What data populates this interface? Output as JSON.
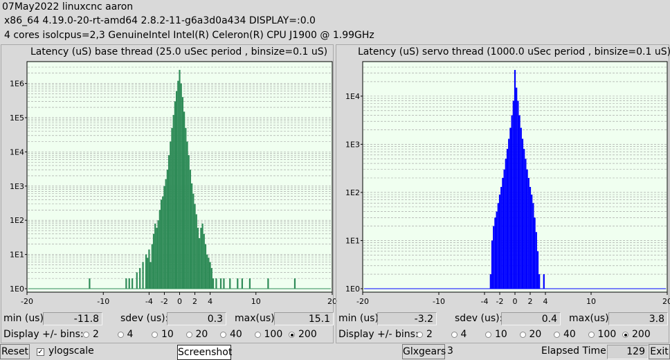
{
  "header": {
    "line1": "07May2022 linuxcnc aaron",
    "line2": "x86_64  4.19.0-20-rt-amd64  2.8.2-11-g6a3d0a434  DISPLAY=:0.0",
    "line3": "4 cores  isolcpus=2,3   GenuineIntel  Intel(R) Celeron(R) CPU J1900 @ 1.99GHz"
  },
  "base": {
    "title": "Latency (uS) base thread (25.0 uSec period , binsize=0.1 uS)",
    "min_label": "min (us)",
    "min_value": "-11.8",
    "sdev_label": "sdev (us):",
    "sdev_value": "0.3",
    "max_label": "max(us)",
    "max_value": "15.1",
    "bins_label": "Display +/- bins:",
    "bins": [
      "2",
      "4",
      "10",
      "20",
      "40",
      "100",
      "200"
    ],
    "selected_bin": "200"
  },
  "servo": {
    "title": "Latency (uS) servo thread (1000.0 uSec period , binsize=0.1 uS)",
    "min_label": "min (us)",
    "min_value": "-3.2",
    "sdev_label": "sdev (us):",
    "sdev_value": "0.4",
    "max_label": "max(us)",
    "max_value": "3.8",
    "bins_label": "Display +/- bins:",
    "bins": [
      "2",
      "4",
      "10",
      "20",
      "40",
      "100",
      "200"
    ],
    "selected_bin": "200"
  },
  "footer": {
    "reset_label": "Reset",
    "ylogscale_label": "ylogscale",
    "ylogscale_checked": true,
    "screenshot_label": "Screenshot",
    "glxgears_label": "Glxgears",
    "glxgears_count": "3",
    "elapsed_label": "Elapsed Time:",
    "elapsed_value": "129",
    "exit_label": "Exit"
  },
  "colors": {
    "base_bars": "#2e8b57",
    "servo_bars": "#0000ff",
    "plot_bg": "#f0fff0",
    "grid": "#999999"
  },
  "chart_data": [
    {
      "type": "bar",
      "title": "Latency (uS) base thread (25.0 uSec period , binsize=0.1 uS)",
      "xlabel": "",
      "ylabel": "",
      "yscale": "log",
      "x_ticks": [
        "-20",
        "-10",
        "-4",
        "-2",
        "0",
        "2",
        "4",
        "10",
        "20"
      ],
      "x_tick_values": [
        -20,
        -10,
        -4,
        -2,
        0,
        2,
        4,
        10,
        20
      ],
      "y_ticks": [
        "1E0",
        "1E1",
        "1E2",
        "1E3",
        "1E4",
        "1E5",
        "1E6"
      ],
      "xlim": [
        -20,
        20
      ],
      "ylim": [
        1,
        3000000
      ],
      "x": [
        -11.8,
        -7,
        -6.6,
        -6.2,
        -5.6,
        -5.2,
        -4.8,
        -4.4,
        -4.2,
        -4.0,
        -3.8,
        -3.6,
        -3.4,
        -3.2,
        -3.0,
        -2.8,
        -2.6,
        -2.4,
        -2.2,
        -2.0,
        -1.8,
        -1.6,
        -1.4,
        -1.2,
        -1.0,
        -0.8,
        -0.6,
        -0.4,
        -0.2,
        0.0,
        0.2,
        0.4,
        0.6,
        0.8,
        1.0,
        1.2,
        1.4,
        1.6,
        1.8,
        2.0,
        2.2,
        2.4,
        2.6,
        2.8,
        3.0,
        3.2,
        3.4,
        3.6,
        3.8,
        4.0,
        4.2,
        4.4,
        4.8,
        5.4,
        5.8,
        6.6,
        7.6,
        8.2,
        9.2,
        11.6,
        15.1
      ],
      "values": [
        2,
        2,
        2,
        2,
        3,
        4,
        6,
        10,
        8,
        14,
        6,
        20,
        40,
        80,
        60,
        100,
        200,
        400,
        500,
        1000,
        1600,
        3000,
        8000,
        20000,
        50000,
        120000,
        300000,
        600000,
        1200000,
        2500000,
        1000000,
        400000,
        150000,
        50000,
        20000,
        8000,
        3000,
        1200,
        600,
        300,
        150,
        60,
        30,
        60,
        80,
        40,
        20,
        10,
        8,
        6,
        4,
        2,
        2,
        2,
        2,
        2,
        2,
        2,
        2,
        2,
        2
      ],
      "series_color": "#2e8b57"
    },
    {
      "type": "bar",
      "title": "Latency (uS) servo thread (1000.0 uSec period , binsize=0.1 uS)",
      "xlabel": "",
      "ylabel": "",
      "yscale": "log",
      "x_ticks": [
        "-20",
        "-10",
        "-4",
        "-2",
        "0",
        "2",
        "4",
        "10",
        "20"
      ],
      "x_tick_values": [
        -20,
        -10,
        -4,
        -2,
        0,
        2,
        4,
        10,
        20
      ],
      "y_ticks": [
        "1E0",
        "1E1",
        "1E2",
        "1E3",
        "1E4"
      ],
      "xlim": [
        -20,
        20
      ],
      "ylim": [
        1,
        40000
      ],
      "x": [
        -3.2,
        -3.0,
        -2.8,
        -2.6,
        -2.4,
        -2.2,
        -2.0,
        -1.8,
        -1.6,
        -1.4,
        -1.2,
        -1.0,
        -0.8,
        -0.6,
        -0.4,
        -0.2,
        0.0,
        0.2,
        0.4,
        0.6,
        0.8,
        1.0,
        1.2,
        1.4,
        1.6,
        1.8,
        2.0,
        2.2,
        2.4,
        2.6,
        2.8,
        3.0,
        3.2,
        3.8
      ],
      "values": [
        2,
        10,
        20,
        30,
        40,
        60,
        90,
        130,
        200,
        300,
        500,
        800,
        1300,
        2200,
        4000,
        8000,
        35000,
        15000,
        8000,
        4000,
        2200,
        1300,
        800,
        500,
        300,
        200,
        130,
        90,
        60,
        30,
        15,
        6,
        2,
        2
      ],
      "series_color": "#0000ff"
    }
  ]
}
